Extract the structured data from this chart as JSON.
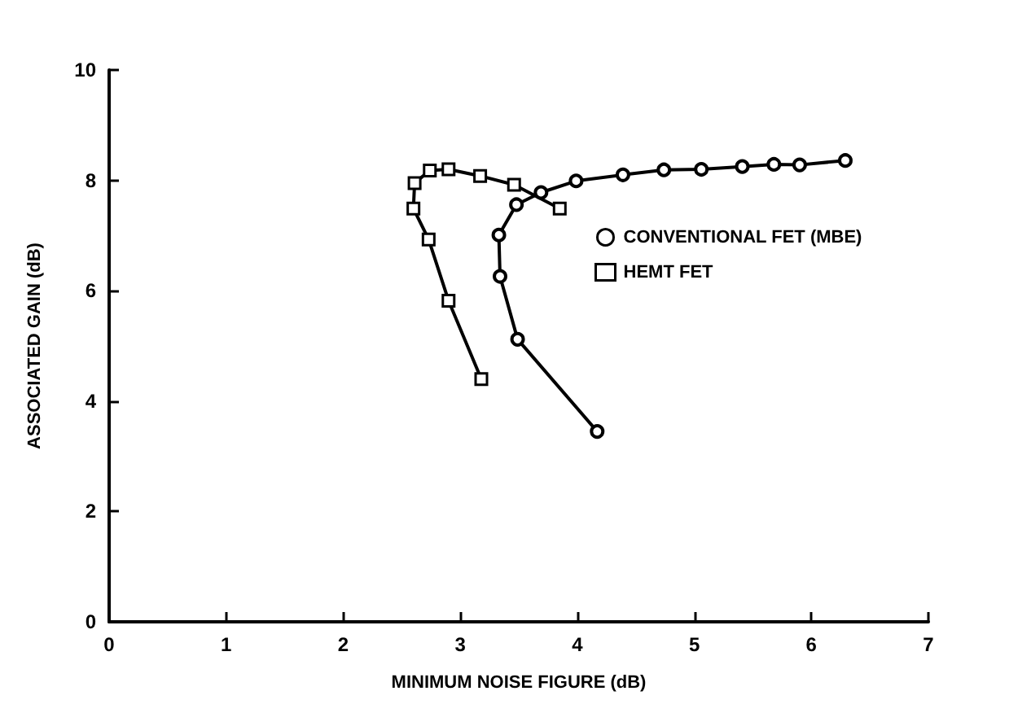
{
  "chart_data": {
    "type": "line",
    "xlabel": "MINIMUM NOISE FIGURE (dB)",
    "ylabel": "ASSOCIATED GAIN (dB)",
    "xlim": [
      0,
      7
    ],
    "xticks": [
      0,
      1,
      2,
      3,
      4,
      5,
      6,
      7
    ],
    "ylim": [
      0,
      10
    ],
    "yticks": [
      0,
      2,
      4,
      6,
      8,
      10
    ],
    "grid": false,
    "legend": "right",
    "line_style": "solid",
    "series": [
      {
        "name": "CONVENTIONAL FET (MBE)",
        "color": "#000000",
        "marker": "circle",
        "x": [
          4.17,
          3.49,
          3.34,
          3.33,
          3.48,
          3.69,
          3.99,
          4.39,
          4.74,
          5.06,
          5.41,
          5.68,
          5.9,
          6.29
        ],
        "values": [
          3.45,
          5.12,
          6.26,
          7.01,
          7.56,
          7.78,
          7.99,
          8.1,
          8.19,
          8.2,
          8.25,
          8.29,
          8.28,
          8.36
        ]
      },
      {
        "name": "HEMT FET",
        "color": "#000000",
        "marker": "square",
        "x": [
          3.18,
          2.9,
          2.73,
          2.6,
          2.61,
          2.74,
          2.9,
          3.17,
          3.46,
          3.85
        ],
        "values": [
          4.4,
          5.82,
          6.93,
          7.49,
          7.95,
          8.18,
          8.2,
          8.08,
          7.92,
          7.49
        ]
      }
    ]
  }
}
